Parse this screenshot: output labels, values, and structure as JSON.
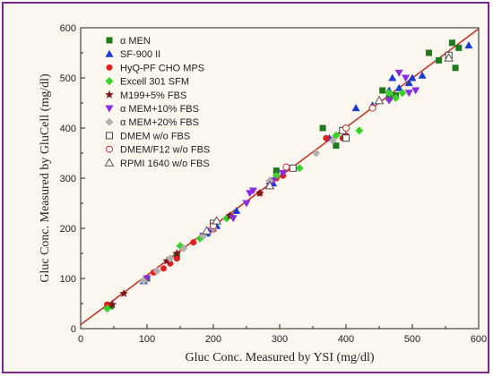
{
  "chart_data": {
    "type": "scatter",
    "title": "",
    "xlabel": "Gluc Conc. Measured by YSI (mg/dl)",
    "ylabel": "Gluc Conc. Measured by GluCell (mg/dl)",
    "xlim": [
      0,
      600
    ],
    "ylim": [
      0,
      600
    ],
    "x_ticks": [
      "0",
      "100",
      "200",
      "300",
      "400",
      "500",
      "600"
    ],
    "y_ticks": [
      "0",
      "100",
      "200",
      "300",
      "400",
      "500",
      "600"
    ],
    "grid": false,
    "legend_position": "top-left",
    "fit_line": {
      "x": [
        0,
        600
      ],
      "y": [
        8,
        598
      ],
      "color": "#c0392b"
    },
    "series": [
      {
        "name": "α MEN",
        "marker": "square",
        "color": "#1f7a1f",
        "x": [
          45,
          100,
          145,
          200,
          295,
          365,
          385,
          455,
          465,
          475,
          525,
          540,
          560,
          565,
          570
        ],
        "y": [
          45,
          100,
          145,
          200,
          315,
          400,
          365,
          475,
          460,
          465,
          550,
          535,
          570,
          520,
          560
        ]
      },
      {
        "name": "SF-900 II",
        "marker": "triangle-up",
        "color": "#1a3bd1",
        "x": [
          95,
          190,
          205,
          235,
          290,
          320,
          375,
          395,
          415,
          440,
          465,
          470,
          480,
          495,
          500,
          515,
          585
        ],
        "y": [
          95,
          190,
          205,
          235,
          290,
          320,
          380,
          395,
          440,
          445,
          475,
          500,
          480,
          490,
          500,
          505,
          565
        ]
      },
      {
        "name": "HyQ-PF CHO MPS",
        "marker": "circle",
        "color": "#e02020",
        "x": [
          40,
          110,
          125,
          135,
          145,
          170,
          200,
          225,
          270,
          295,
          305,
          370,
          395,
          400
        ],
        "y": [
          48,
          112,
          120,
          130,
          140,
          172,
          198,
          225,
          270,
          300,
          305,
          380,
          380,
          385
        ]
      },
      {
        "name": "Excell 301 SFM",
        "marker": "diamond",
        "color": "#39d12a",
        "x": [
          40,
          95,
          150,
          180,
          220,
          295,
          330,
          385,
          420,
          465,
          475,
          485
        ],
        "y": [
          40,
          95,
          165,
          180,
          220,
          305,
          320,
          385,
          395,
          470,
          460,
          470
        ]
      },
      {
        "name": "M199+5% FBS",
        "marker": "star",
        "color": "#7a1a1a",
        "x": [
          48,
          65,
          130,
          145,
          225,
          270
        ],
        "y": [
          48,
          70,
          135,
          150,
          225,
          270
        ]
      },
      {
        "name": "α MEM+10% FBS",
        "marker": "triangle-down",
        "color": "#8a2be2",
        "x": [
          100,
          185,
          195,
          230,
          250,
          255,
          260,
          285,
          290,
          305,
          465,
          480,
          490,
          495,
          505
        ],
        "y": [
          100,
          185,
          195,
          220,
          250,
          270,
          275,
          285,
          295,
          310,
          455,
          510,
          500,
          470,
          475
        ]
      },
      {
        "name": "α MEM+20% FBS",
        "marker": "diamond",
        "color": "#b0b0b0",
        "x": [
          95,
          115,
          135,
          155,
          185,
          200,
          285,
          355,
          380,
          555
        ],
        "y": [
          95,
          115,
          140,
          160,
          185,
          200,
          295,
          350,
          375,
          540
        ]
      },
      {
        "name": "DMEM w/o FBS",
        "marker": "square-open",
        "color": "#444444",
        "x": [
          200,
          320,
          395,
          400,
          555
        ],
        "y": [
          210,
          320,
          395,
          380,
          545
        ]
      },
      {
        "name": "DMEM/F12 w/o FBS",
        "marker": "circle-open",
        "color": "#c03030",
        "x": [
          200,
          310,
          400,
          440
        ],
        "y": [
          205,
          322,
          400,
          440
        ]
      },
      {
        "name": "RPMI 1640 w/o FBS",
        "marker": "triangle-open",
        "color": "#555555",
        "x": [
          190,
          205,
          285,
          450,
          555
        ],
        "y": [
          195,
          215,
          285,
          455,
          540
        ]
      }
    ]
  }
}
